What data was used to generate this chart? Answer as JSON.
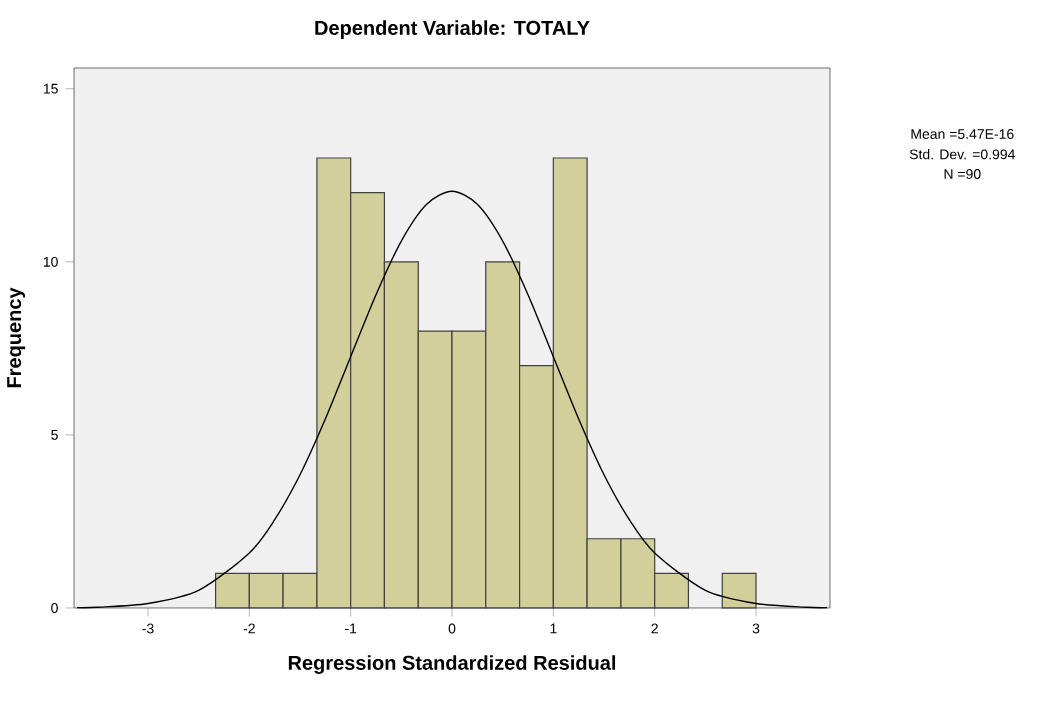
{
  "chart_data": {
    "type": "histogram",
    "title": "Dependent Variable: TOTALY",
    "xlabel": "Regression Standardized Residual",
    "ylabel": "Frequency",
    "bins": [
      -2.333,
      -2,
      -1.667,
      -1.333,
      -1,
      -0.667,
      -0.333,
      0,
      0.333,
      0.667,
      1,
      1.333,
      1.667,
      2,
      2.333,
      2.667,
      3
    ],
    "values": [
      1,
      1,
      1,
      13,
      12,
      10,
      8,
      8,
      10,
      7,
      13,
      2,
      2,
      1,
      0,
      1
    ],
    "color": "#d2cf9b",
    "series": [
      {
        "type": "line",
        "color": "#000000",
        "x": [
          -3.7,
          -3.5,
          -3,
          -2.5,
          -2,
          -1.75,
          -1.5,
          -1.25,
          -1,
          -0.75,
          -0.5,
          -0.25,
          0,
          0.25,
          0.5,
          0.75,
          1,
          1.25,
          1.5,
          1.75,
          2,
          2.5,
          3,
          3.5,
          3.7
        ],
        "values": [
          0.01,
          0.02,
          0.13,
          0.51,
          1.59,
          2.55,
          3.85,
          5.46,
          7.26,
          9.05,
          10.6,
          11.66,
          12.04,
          11.66,
          10.6,
          9.05,
          7.26,
          5.46,
          3.85,
          2.55,
          1.59,
          0.51,
          0.13,
          0.02,
          0.01
        ]
      }
    ],
    "xlim": [
      -3.73,
      3.73
    ],
    "ylim": [
      0,
      15.6
    ],
    "xticks": [
      -3,
      -2,
      -1,
      0,
      1,
      2,
      3
    ],
    "yticks": [
      0,
      5,
      10,
      15
    ],
    "grid": false,
    "annotations": [
      "Mean =5.47E-16",
      "Std. Dev. =0.994",
      "N =90"
    ]
  }
}
